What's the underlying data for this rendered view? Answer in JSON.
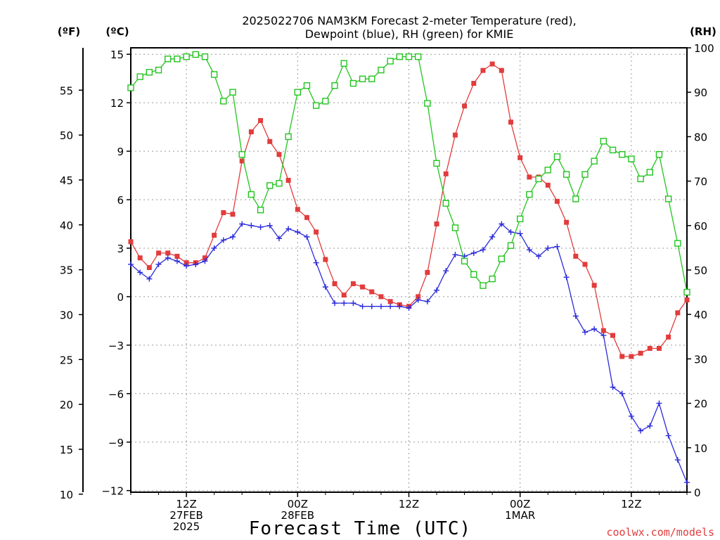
{
  "chart_data": {
    "type": "line",
    "title": "2025022706 NAM3KM Forecast 2-meter Temperature (red),",
    "subtitle": "Dewpoint (blue), RH (green) for KMIE",
    "xlabel": "Forecast Time (UTC)",
    "units": {
      "fahrenheit": "(ºF)",
      "celsius": "(ºC)",
      "rh": "(RH)"
    },
    "credit": "coolwx.com/models",
    "forecast_hours": [
      0,
      1,
      2,
      3,
      4,
      5,
      6,
      7,
      8,
      9,
      10,
      11,
      12,
      13,
      14,
      15,
      16,
      17,
      18,
      19,
      20,
      21,
      22,
      23,
      24,
      25,
      26,
      27,
      28,
      29,
      30,
      31,
      32,
      33,
      34,
      35,
      36,
      37,
      38,
      39,
      40,
      41,
      42,
      43,
      44,
      45,
      46,
      47,
      48,
      49,
      50,
      51,
      52,
      53,
      54,
      55,
      56,
      57,
      58,
      59,
      60
    ],
    "xlim": [
      0,
      60
    ],
    "x_ticks": [
      {
        "hour": 6,
        "lines": [
          "12Z",
          "27FEB",
          "2025"
        ]
      },
      {
        "hour": 18,
        "lines": [
          "00Z",
          "28FEB"
        ]
      },
      {
        "hour": 30,
        "lines": [
          "12Z"
        ]
      },
      {
        "hour": 42,
        "lines": [
          "00Z",
          "1MAR"
        ]
      },
      {
        "hour": 54,
        "lines": [
          "12Z"
        ]
      }
    ],
    "y_celsius": {
      "ylim": [
        -12.1,
        15.4
      ],
      "ticks": [
        15,
        12,
        9,
        6,
        3,
        0,
        -3,
        -6,
        -9,
        -12
      ]
    },
    "y_fahrenheit": {
      "ticks": [
        55,
        50,
        45,
        40,
        35,
        30,
        25,
        20,
        15,
        10
      ]
    },
    "y_rh": {
      "ylim": [
        0,
        100
      ],
      "ticks": [
        100,
        90,
        80,
        70,
        60,
        50,
        40,
        30,
        20,
        10,
        0
      ]
    },
    "series": [
      {
        "name": "Temperature",
        "axis": "celsius",
        "color": "#e23c3c",
        "marker": "filled-square",
        "values": [
          3.4,
          2.4,
          1.8,
          2.7,
          2.7,
          2.5,
          2.1,
          2.1,
          2.4,
          3.8,
          5.2,
          5.1,
          8.4,
          10.2,
          10.9,
          9.6,
          8.8,
          7.2,
          5.4,
          4.9,
          4.0,
          2.3,
          0.8,
          0.1,
          0.8,
          0.6,
          0.3,
          0.0,
          -0.3,
          -0.5,
          -0.6,
          0.0,
          1.5,
          4.5,
          7.6,
          10.0,
          11.8,
          13.2,
          14.0,
          14.4,
          14.0,
          10.8,
          8.6,
          7.4,
          7.4,
          6.9,
          5.9,
          4.6,
          2.5,
          2.0,
          0.7,
          -2.1,
          -2.4,
          -3.7,
          -3.7,
          -3.5,
          -3.2,
          -3.2,
          -2.5,
          -1.0,
          -0.2
        ]
      },
      {
        "name": "Dewpoint",
        "axis": "celsius",
        "color": "#2a2adb",
        "marker": "plus",
        "values": [
          2.0,
          1.5,
          1.1,
          2.0,
          2.4,
          2.2,
          1.9,
          2.0,
          2.2,
          3.0,
          3.5,
          3.7,
          4.5,
          4.4,
          4.3,
          4.4,
          3.6,
          4.2,
          4.0,
          3.7,
          2.1,
          0.6,
          -0.4,
          -0.4,
          -0.4,
          -0.6,
          -0.6,
          -0.6,
          -0.6,
          -0.6,
          -0.7,
          -0.2,
          -0.3,
          0.4,
          1.6,
          2.6,
          2.5,
          2.7,
          2.9,
          3.7,
          4.5,
          4.0,
          3.9,
          2.9,
          2.5,
          3.0,
          3.1,
          1.2,
          -1.2,
          -2.2,
          -2.0,
          -2.4,
          -5.6,
          -6.0,
          -7.4,
          -8.3,
          -8.0,
          -6.6,
          -8.6,
          -10.1,
          -11.5
        ]
      },
      {
        "name": "RH",
        "axis": "rh",
        "color": "#22c41e",
        "marker": "open-square",
        "values": [
          91,
          93.5,
          94.5,
          95,
          97.5,
          97.5,
          98,
          98.5,
          98,
          94,
          88,
          90,
          76,
          67,
          63.5,
          69,
          69.5,
          80,
          90,
          91.5,
          87,
          88,
          91.5,
          96.5,
          92,
          93,
          93,
          95,
          97,
          98,
          98,
          98,
          87.5,
          74,
          65,
          59.5,
          52,
          49,
          46.5,
          48,
          52.5,
          55.5,
          61.5,
          67,
          70.5,
          72.5,
          75.5,
          71.5,
          66,
          71.5,
          74.5,
          79,
          77,
          76,
          75,
          70.5,
          72,
          76,
          66,
          56,
          45
        ]
      }
    ]
  }
}
